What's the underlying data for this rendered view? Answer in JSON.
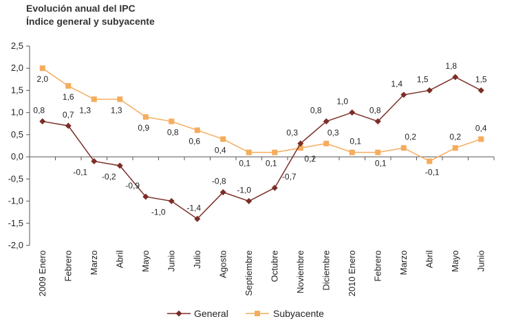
{
  "chart_data": {
    "type": "line",
    "title": "Evolución anual del IPC",
    "subtitle": "Índice general y subyacente",
    "categories": [
      "2009 Enero",
      "Febrero",
      "Marzo",
      "Abril",
      "Mayo",
      "Junio",
      "Julio",
      "Agosto",
      "Septiembre",
      "Octubre",
      "Noviembre",
      "Diciembre",
      "2010 Enero",
      "Febrero",
      "Marzo",
      "Abril",
      "Mayo",
      "Junio"
    ],
    "series": [
      {
        "name": "General",
        "color": "#7b2d26",
        "marker": "diamond",
        "values": [
          0.8,
          0.7,
          -0.1,
          -0.2,
          -0.9,
          -1.0,
          -1.4,
          -0.8,
          -1.0,
          -0.7,
          0.3,
          0.8,
          1.0,
          0.8,
          1.4,
          1.5,
          1.8,
          1.5
        ],
        "labels": [
          "0,8",
          "0,7",
          "-0,1",
          "-0,2",
          "-0,9",
          "-1,0",
          "-1,4",
          "-0,8",
          "-1,0",
          "-0,7",
          "0,3",
          "0,8",
          "1,0",
          "0,8",
          "1,4",
          "1,5",
          "1,8",
          "1,5"
        ]
      },
      {
        "name": "Subyacente",
        "color": "#f5ac5c",
        "marker": "square",
        "values": [
          2.0,
          1.6,
          1.3,
          1.3,
          0.9,
          0.8,
          0.6,
          0.4,
          0.1,
          0.1,
          0.2,
          0.3,
          0.1,
          0.1,
          0.2,
          -0.1,
          0.2,
          0.4
        ],
        "labels": [
          "2,0",
          "1,6",
          "1,3",
          "1,3",
          "0,9",
          "0,8",
          "0,6",
          "0,4",
          "0,1",
          "0,1",
          "0,2",
          "0,3",
          "0,1",
          "0,1",
          "0,2",
          "-0,1",
          "0,2",
          "0,4"
        ]
      }
    ],
    "yticks": [
      "2,5",
      "2,0",
      "1,5",
      "1,0",
      "0,5",
      "0,0",
      "-0,5",
      "-1,0",
      "-1,5",
      "-2,0"
    ],
    "ylim": [
      -2.0,
      2.5
    ],
    "grid": false,
    "legend": "bottom-center"
  }
}
